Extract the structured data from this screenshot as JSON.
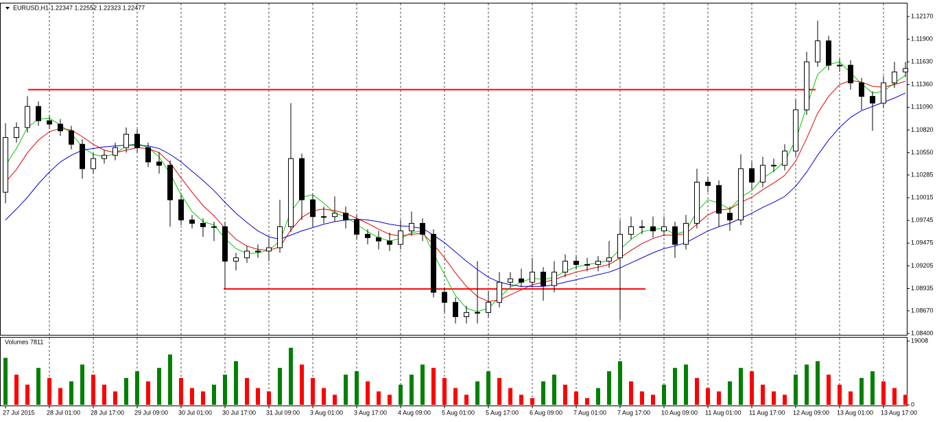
{
  "chart_data": {
    "type": "candlestick",
    "title": "EURUSD,H1  1.22347 1.22552 1.22323 1.22477",
    "categories": [
      "27 Jul 2015",
      null,
      null,
      null,
      "28 Jul 01:00",
      null,
      null,
      null,
      "28 Jul 17:00",
      null,
      null,
      null,
      "29 Jul 09:00",
      null,
      null,
      null,
      "30 Jul 01:00",
      null,
      null,
      null,
      "30 Jul 17:00",
      null,
      null,
      null,
      "31 Jul 09:00",
      null,
      null,
      null,
      "3 Aug 01:00",
      null,
      null,
      null,
      "3 Aug 17:00",
      null,
      null,
      null,
      "4 Aug 09:00",
      null,
      null,
      null,
      "5 Aug 01:00",
      null,
      null,
      null,
      "5 Aug 17:00",
      null,
      null,
      null,
      "6 Aug 09:00",
      null,
      null,
      null,
      "7 Aug 01:00",
      null,
      null,
      null,
      "7 Aug 17:00",
      null,
      null,
      null,
      "10 Aug 09:00",
      null,
      null,
      null,
      "11 Aug 01:00",
      null,
      null,
      null,
      "11 Aug 17:00",
      null,
      null,
      null,
      "12 Aug 09:00",
      null,
      null,
      null,
      "13 Aug 01:00",
      null,
      null,
      null,
      "13 Aug 17:00",
      null,
      null
    ],
    "open": [
      1.1008,
      1.1073,
      1.1085,
      1.111,
      1.1093,
      1.1089,
      1.1081,
      1.1065,
      1.1036,
      1.1048,
      1.1052,
      1.1061,
      1.1077,
      1.1061,
      1.1044,
      1.104,
      1.0999,
      1.0975,
      1.0971,
      1.0967,
      1.0967,
      1.0926,
      1.093,
      1.0938,
      1.0938,
      1.0942,
      1.0967,
      1.1048,
      1.0999,
      1.0979,
      1.0979,
      1.0983,
      1.0975,
      1.0958,
      1.0954,
      1.095,
      1.0946,
      1.0962,
      1.0971,
      1.0958,
      1.0889,
      1.0877,
      1.086,
      1.0865,
      1.0865,
      1.0877,
      1.0901,
      1.0905,
      1.0901,
      1.0913,
      1.0897,
      1.0913,
      1.0926,
      1.0922,
      1.0922,
      1.0926,
      1.093,
      1.0958,
      1.0967,
      1.0967,
      1.0962,
      1.0967,
      1.0946,
      1.0971,
      1.102,
      1.1016,
      1.0983,
      1.0975,
      1.1036,
      1.102,
      1.104,
      1.104,
      1.1057,
      1.1106,
      1.1163,
      1.1188,
      1.1159,
      1.1159,
      1.1138,
      1.1122,
      1.1114,
      1.1138,
      1.1151
    ],
    "high": [
      1.109,
      1.1091,
      1.1122,
      1.1116,
      1.1099,
      1.1095,
      1.1087,
      1.1071,
      1.1054,
      1.1058,
      1.1067,
      1.1085,
      1.1083,
      1.1067,
      1.1056,
      1.1046,
      1.1005,
      1.0981,
      1.0977,
      1.0973,
      1.0973,
      1.0936,
      1.0944,
      1.0946,
      1.0954,
      1.0999,
      1.1114,
      1.1054,
      1.1005,
      1.0991,
      1.1003,
      1.0991,
      1.0981,
      1.0964,
      1.0962,
      1.096,
      1.0975,
      1.0985,
      1.0977,
      1.0964,
      1.0895,
      1.0883,
      1.0873,
      1.0926,
      1.0891,
      1.0913,
      1.0913,
      1.0917,
      1.093,
      1.0919,
      1.0926,
      1.0934,
      1.0932,
      1.093,
      1.0932,
      1.095,
      1.0975,
      1.0979,
      1.0975,
      1.0979,
      1.0979,
      1.0973,
      1.0981,
      1.1036,
      1.1026,
      1.1022,
      1.0991,
      1.1053,
      1.1044,
      1.105,
      1.1048,
      1.1065,
      1.1118,
      1.1175,
      1.1212,
      1.1194,
      1.1167,
      1.1165,
      1.1144,
      1.1128,
      1.1146,
      1.1163,
      1.1163
    ],
    "low": [
      1.0995,
      1.1067,
      1.1079,
      1.1087,
      1.1083,
      1.1075,
      1.1059,
      1.1024,
      1.103,
      1.1042,
      1.1046,
      1.1055,
      1.1055,
      1.1038,
      1.103,
      1.0967,
      1.0969,
      1.0965,
      1.0955,
      1.095,
      1.0893,
      1.0915,
      1.0924,
      1.093,
      1.0926,
      1.0936,
      1.0961,
      1.0975,
      1.0967,
      1.0971,
      1.0973,
      1.0965,
      1.0952,
      1.0946,
      1.094,
      1.0938,
      1.094,
      1.0956,
      1.095,
      1.0883,
      1.0865,
      1.0852,
      1.0852,
      1.0852,
      1.0859,
      1.0871,
      1.0895,
      1.0895,
      1.0895,
      1.0879,
      1.0889,
      1.0907,
      1.0916,
      1.0914,
      1.0914,
      1.0918,
      1.0856,
      1.0952,
      1.0958,
      1.0954,
      1.0956,
      1.093,
      1.094,
      1.0965,
      1.1008,
      1.0967,
      1.0962,
      1.0969,
      1.1012,
      1.1014,
      1.1032,
      1.1034,
      1.1051,
      1.11,
      1.1157,
      1.1153,
      1.1151,
      1.113,
      1.1106,
      1.1081,
      1.1108,
      1.1132,
      1.1145
    ],
    "close": [
      1.1073,
      1.1085,
      1.111,
      1.1093,
      1.1089,
      1.1081,
      1.1065,
      1.1036,
      1.1048,
      1.1052,
      1.1061,
      1.1077,
      1.1061,
      1.1044,
      1.104,
      1.0999,
      1.0975,
      1.0971,
      1.0967,
      1.0967,
      1.0926,
      1.093,
      1.0938,
      1.0938,
      1.0942,
      1.0967,
      1.1048,
      1.0999,
      1.0979,
      1.0979,
      1.0983,
      1.0975,
      1.0958,
      1.0954,
      1.095,
      1.0946,
      1.0962,
      1.0971,
      1.0958,
      1.0889,
      1.0877,
      1.086,
      1.0865,
      1.0865,
      1.0877,
      1.0901,
      1.0905,
      1.0901,
      1.0913,
      1.0897,
      1.0913,
      1.0926,
      1.0922,
      1.0922,
      1.0926,
      1.093,
      1.0958,
      1.0967,
      1.0967,
      1.0962,
      1.0967,
      1.0946,
      1.0971,
      1.102,
      1.1016,
      1.0983,
      1.0975,
      1.1036,
      1.102,
      1.104,
      1.104,
      1.1057,
      1.1106,
      1.1163,
      1.1188,
      1.1159,
      1.1159,
      1.1138,
      1.1122,
      1.1114,
      1.1138,
      1.1151,
      1.1155
    ],
    "up_color": "#ffffff",
    "down_color": "#000000",
    "ylim": [
      1.08384,
      1.12325
    ],
    "yticks": [
      {
        "value": 1.1217,
        "label": "1.12170"
      },
      {
        "value": 1.119,
        "label": "1.11900"
      },
      {
        "value": 1.1163,
        "label": "1.11630"
      },
      {
        "value": 1.1136,
        "label": "1.11360"
      },
      {
        "value": 1.1109,
        "label": "1.11090"
      },
      {
        "value": 1.1082,
        "label": "1.10820"
      },
      {
        "value": 1.1055,
        "label": "1.10550"
      },
      {
        "value": 1.10285,
        "label": "1.10285"
      },
      {
        "value": 1.10015,
        "label": "1.10015"
      },
      {
        "value": 1.09745,
        "label": "1.09745"
      },
      {
        "value": 1.09475,
        "label": "1.09475"
      },
      {
        "value": 1.09205,
        "label": "1.09205"
      },
      {
        "value": 1.08935,
        "label": "1.08935"
      },
      {
        "value": 1.0867,
        "label": "1.08670"
      },
      {
        "value": 1.084,
        "label": "1.08400"
      }
    ],
    "grid": true,
    "series": [
      {
        "color": "#00cc00",
        "values": [
          1.104,
          1.106,
          1.1085,
          1.1095,
          1.1096,
          1.1088,
          1.1078,
          1.1062,
          1.1053,
          1.105,
          1.1054,
          1.1063,
          1.1066,
          1.1061,
          1.105,
          1.103,
          1.1005,
          1.0985,
          1.0973,
          1.0969,
          1.0953,
          1.0941,
          1.0935,
          1.0936,
          1.0939,
          1.095,
          1.0985,
          1.1002,
          1.1005,
          1.0995,
          1.0983,
          1.0979,
          1.097,
          1.0961,
          1.0954,
          1.095,
          1.0953,
          1.096,
          1.0962,
          1.0935,
          1.091,
          1.0885,
          1.087,
          1.0866,
          1.087,
          1.0883,
          1.0895,
          1.0901,
          1.0906,
          1.0904,
          1.0907,
          1.0914,
          1.0919,
          1.0922,
          1.0924,
          1.0927,
          1.094,
          1.0952,
          1.0961,
          1.0964,
          1.0965,
          1.0958,
          1.0962,
          1.0985,
          1.0999,
          1.0995,
          1.0988,
          1.1002,
          1.101,
          1.1025,
          1.1033,
          1.1045,
          1.107,
          1.111,
          1.1148,
          1.116,
          1.1163,
          1.115,
          1.1137,
          1.1126,
          1.1128,
          1.1138,
          1.1147
        ]
      },
      {
        "color": "#e00000",
        "values": [
          1.102,
          1.1035,
          1.1055,
          1.107,
          1.108,
          1.1084,
          1.1082,
          1.1074,
          1.1065,
          1.1058,
          1.1055,
          1.1058,
          1.1061,
          1.106,
          1.1055,
          1.1043,
          1.1025,
          1.1008,
          1.0992,
          1.098,
          1.0965,
          1.0952,
          1.0944,
          1.094,
          1.0939,
          1.0943,
          1.0963,
          1.0978,
          1.0986,
          1.0988,
          1.0986,
          1.0983,
          1.0977,
          1.0971,
          1.0964,
          1.0958,
          1.0956,
          1.0958,
          1.0959,
          1.0946,
          1.093,
          1.0912,
          1.0896,
          1.0884,
          1.0878,
          1.088,
          1.0886,
          1.0892,
          1.0898,
          1.0901,
          1.0904,
          1.0909,
          1.0913,
          1.0916,
          1.0919,
          1.0922,
          1.093,
          1.0939,
          1.0947,
          1.0953,
          1.0957,
          1.0957,
          1.0959,
          1.097,
          1.0981,
          1.0987,
          1.0988,
          1.0996,
          1.1002,
          1.1011,
          1.1019,
          1.1028,
          1.1045,
          1.1072,
          1.1102,
          1.1122,
          1.1136,
          1.1141,
          1.1139,
          1.1134,
          1.1133,
          1.1136,
          1.114
        ]
      },
      {
        "color": "#0000e0",
        "values": [
          1.0975,
          1.0988,
          1.1002,
          1.1018,
          1.1032,
          1.1044,
          1.1052,
          1.1058,
          1.106,
          1.1062,
          1.1063,
          1.1064,
          1.1064,
          1.1063,
          1.106,
          1.1053,
          1.1044,
          1.1033,
          1.1022,
          1.101,
          1.0996,
          1.0983,
          1.0972,
          1.0962,
          1.0955,
          1.0952,
          1.0957,
          1.0962,
          1.0966,
          1.097,
          1.0973,
          1.0975,
          1.0976,
          1.0975,
          1.0973,
          1.097,
          1.0968,
          1.0967,
          1.0965,
          1.0957,
          1.0948,
          1.0937,
          1.0926,
          1.0916,
          1.0907,
          1.0901,
          1.0898,
          1.0896,
          1.0896,
          1.0896,
          1.0898,
          1.0901,
          1.0904,
          1.0907,
          1.091,
          1.0913,
          1.0918,
          1.0924,
          1.093,
          1.0936,
          1.0941,
          1.0944,
          1.0948,
          1.0955,
          1.0962,
          1.0967,
          1.0971,
          1.0977,
          1.0983,
          1.099,
          1.0996,
          1.1003,
          1.1015,
          1.1032,
          1.1052,
          1.107,
          1.1085,
          1.1097,
          1.1105,
          1.111,
          1.1115,
          1.112,
          1.1126
        ]
      }
    ],
    "hlines": [
      {
        "value": 1.113,
        "color": "#ff0000"
      },
      {
        "value": 1.0893,
        "color": "#ff0000"
      }
    ],
    "volume": {
      "title": "Volumes 7811",
      "values": [
        14000,
        9000,
        6000,
        11000,
        8000,
        5000,
        7000,
        12000,
        9000,
        6000,
        4000,
        8000,
        10000,
        7000,
        11000,
        15000,
        8000,
        5000,
        4000,
        6000,
        9000,
        13000,
        8000,
        5000,
        4000,
        11000,
        17000,
        12000,
        8000,
        5000,
        3000,
        9000,
        10000,
        7000,
        4000,
        3000,
        6000,
        9000,
        12000,
        11000,
        8000,
        5000,
        3000,
        7000,
        10000,
        8000,
        5000,
        3000,
        2000,
        7000,
        9000,
        6000,
        4000,
        2000,
        5000,
        10000,
        13000,
        7000,
        4000,
        3000,
        6000,
        11000,
        12000,
        8000,
        5000,
        4000,
        7000,
        11000,
        10000,
        6000,
        4000,
        3000,
        9000,
        12000,
        13000,
        9000,
        6000,
        4000,
        8000,
        10000,
        7000,
        5000,
        3000
      ],
      "ylim": [
        0,
        19008
      ],
      "yticks": [
        19008,
        0
      ],
      "up_color": "#008000",
      "down_color": "#ff0000"
    }
  }
}
